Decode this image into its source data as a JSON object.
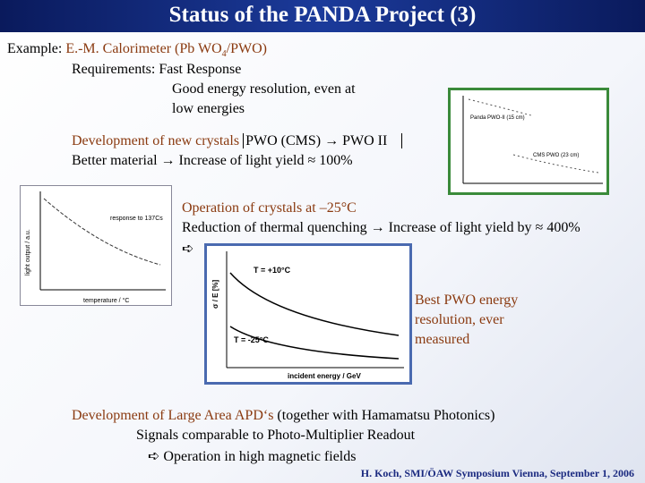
{
  "header": {
    "title": "Status of the PANDA Project (3)"
  },
  "body": {
    "example_label": "Example:",
    "example_text": "E.-M. Calorimeter (Pb WO",
    "example_sub": "4",
    "example_end": "/PWO)",
    "requirements": "Requirements: Fast Response",
    "resolution_1": "Good energy resolution, even at",
    "resolution_2": "low energies",
    "crystals_label": "Development of new crystals",
    "crystals_text": "PWO (CMS) → PWO II",
    "better": "Better material → Increase of light yield ≈ 100%",
    "operation": "Operation of crystals at –25°C",
    "quenching": "Reduction of thermal quenching → Increase of light yield by ≈ 400%",
    "arrow": "➪",
    "best": [
      "Best PWO energy",
      "resolution, ever",
      "measured"
    ],
    "apd_label": "Development of Large Area APD‘s",
    "apd_text": "(together with Hamamatsu Photonics)",
    "signals": "Signals comparable to Photo-Multiplier Readout",
    "magnetic": "➪  Operation in high magnetic fields"
  },
  "figures": {
    "fig1": {
      "label_a": "Panda PWO-II (15 cm)",
      "label_b": "CMS PWO (23 cm)"
    },
    "fig2": {
      "label": "response to 137Cs",
      "x_label": "temperature / °C",
      "y_label": "light output / a.u."
    },
    "fig3": {
      "label_a": "T = +10°C",
      "label_b": "T = -25°C",
      "x_label": "incident energy / GeV",
      "y_label": "σ / E [%]"
    }
  },
  "footer": {
    "text": "H. Koch, SMI/ÖAW Symposium Vienna, September 1, 2006"
  }
}
